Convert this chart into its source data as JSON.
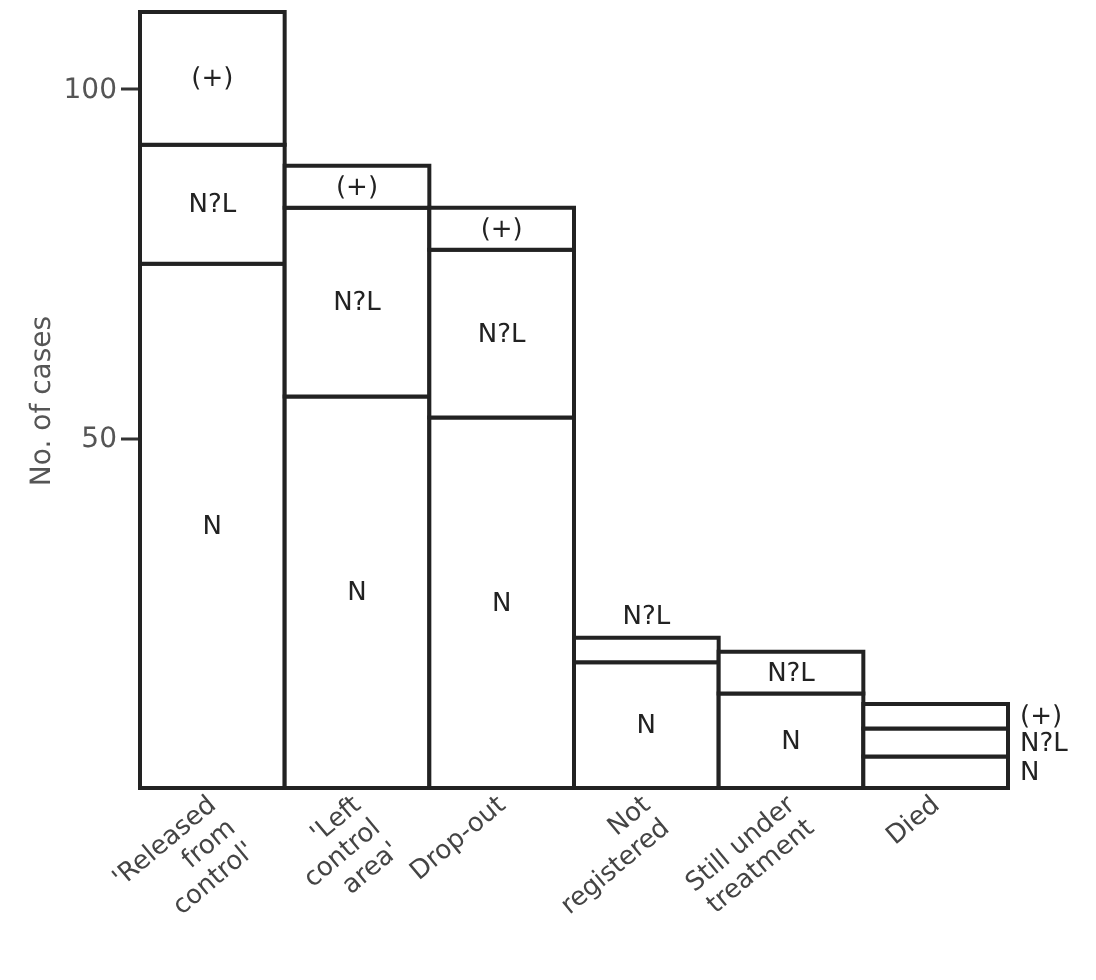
{
  "chart_data": {
    "type": "bar",
    "stacked": true,
    "ylabel": "No. of cases",
    "categories": [
      "'Released\nfrom\ncontrol'",
      "'Left\ncontrol\narea'",
      "Drop-out",
      "Not\nregistered",
      "Still under\ntreatment",
      "Died"
    ],
    "series": [
      {
        "name": "N",
        "color": "#ffffff",
        "values": [
          75,
          56,
          53,
          18,
          13.5,
          4.5
        ]
      },
      {
        "name": "N?L",
        "color": "#ffffff",
        "values": [
          17,
          27,
          24,
          3.5,
          6,
          4
        ]
      },
      {
        "name": "(+)",
        "color": "#ffffff",
        "values": [
          19,
          6,
          6,
          null,
          null,
          3.5
        ]
      }
    ],
    "ylim": [
      0,
      111
    ],
    "yticks": [
      50,
      100
    ]
  }
}
